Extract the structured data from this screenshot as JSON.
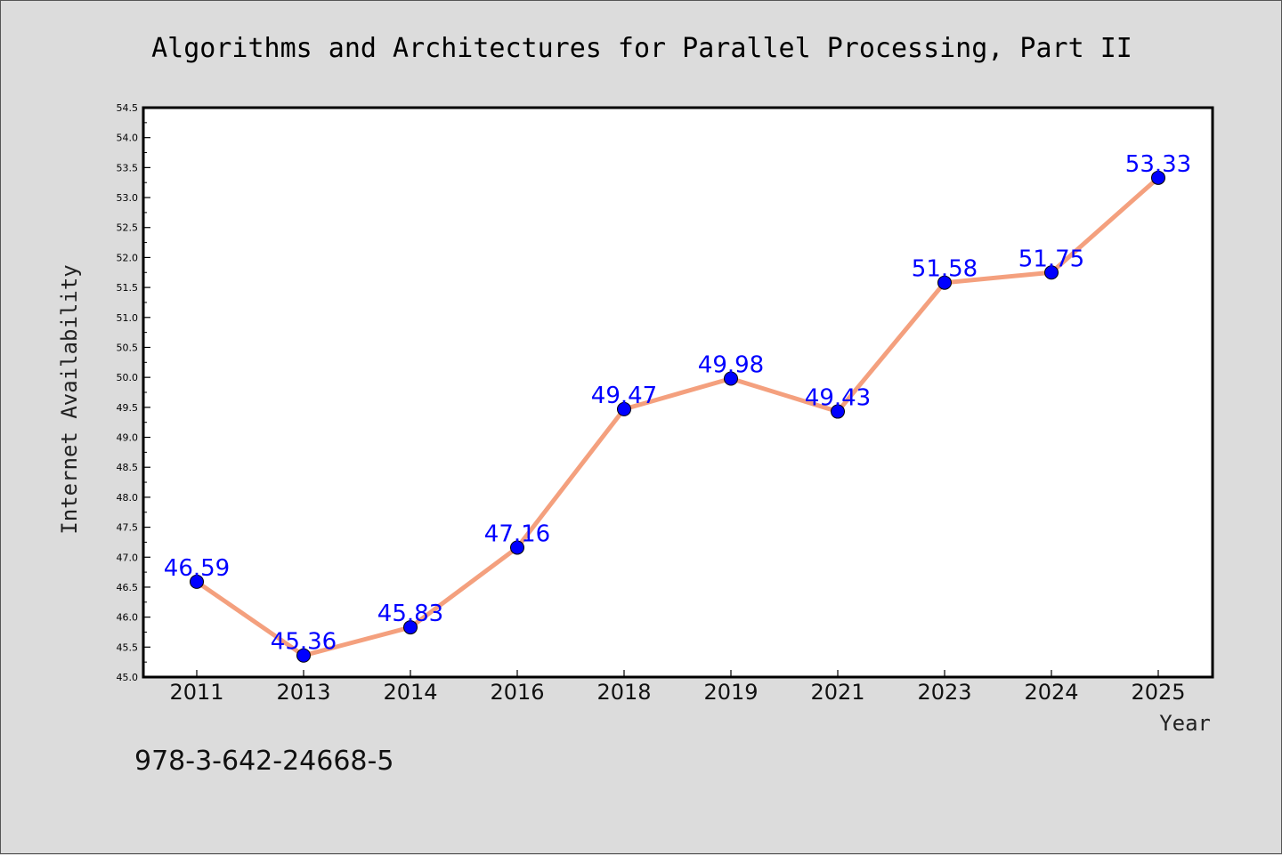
{
  "chart_data": {
    "type": "line",
    "title": "Algorithms and Architectures for Parallel Processing, Part II",
    "xlabel": "Year",
    "ylabel": "Internet Availability",
    "categories": [
      "2011",
      "2013",
      "2014",
      "2016",
      "2018",
      "2019",
      "2021",
      "2023",
      "2024",
      "2025"
    ],
    "series": [
      {
        "values": [
          46.59,
          45.36,
          45.83,
          47.16,
          49.47,
          49.98,
          49.43,
          51.58,
          51.75,
          53.33
        ],
        "data_labels": [
          "46.59",
          "45.36",
          "45.83",
          "47.16",
          "49.47",
          "49.98",
          "49.43",
          "51.58",
          "51.75",
          "53.33"
        ],
        "line_color": "#f4a07e",
        "marker_color": "#0000ff"
      }
    ],
    "ylim": [
      45.0,
      54.5
    ],
    "yticks": [
      "45.0",
      "45.5",
      "46.0",
      "46.5",
      "47.0",
      "47.5",
      "48.0",
      "48.5",
      "49.0",
      "49.5",
      "50.0",
      "50.5",
      "51.0",
      "51.5",
      "52.0",
      "52.5",
      "53.0",
      "53.5",
      "54.0",
      "54.5"
    ],
    "label_color": "#0000ff",
    "grid": false,
    "legend": "none"
  },
  "footer_text": "978-3-642-24668-5"
}
